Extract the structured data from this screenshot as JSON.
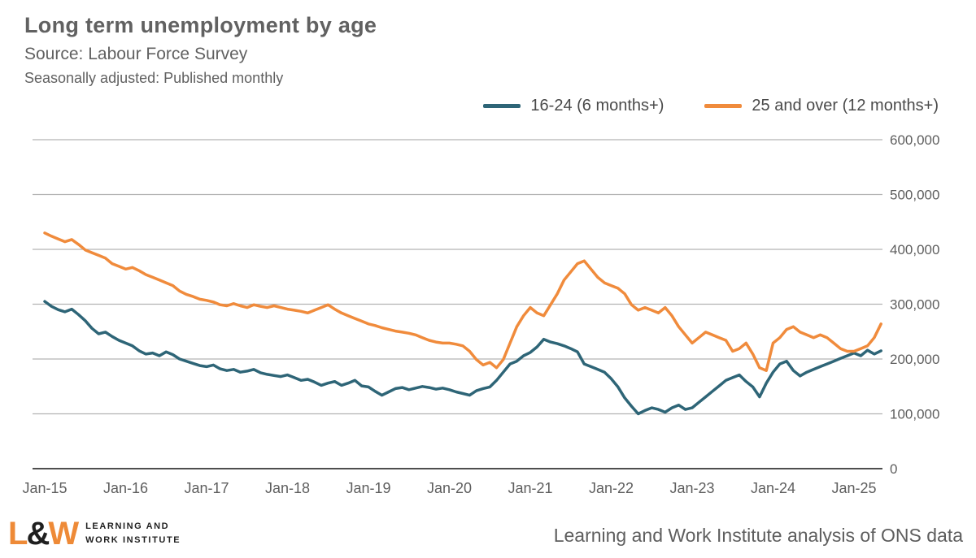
{
  "header": {
    "title": "Long term unemployment by age",
    "source": "Source: Labour Force Survey",
    "subtitle": "Seasonally adjusted: Published monthly"
  },
  "legend": [
    {
      "label": "16-24 (6 months+)",
      "color": "#2e6577"
    },
    {
      "label": "25 and over (12 months+)",
      "color": "#f08b3c"
    }
  ],
  "footer": {
    "logo_l": "L",
    "logo_amp": "&",
    "logo_w": "W",
    "logo_caption_line1": "LEARNING AND",
    "logo_caption_line2": "WORK INSTITUTE",
    "attribution": "Learning and Work Institute analysis of ONS data"
  },
  "chart_data": {
    "type": "line",
    "title": "Long term unemployment by age",
    "xlabel": "",
    "ylabel": "",
    "ylim": [
      0,
      600000
    ],
    "y_axis_side": "right",
    "grid": "horizontal",
    "legend_position": "top",
    "frequency": "monthly",
    "x_start": "Jan-2015",
    "x_end": "May-2025",
    "x_tick_labels": [
      "Jan-15",
      "Jan-16",
      "Jan-17",
      "Jan-18",
      "Jan-19",
      "Jan-20",
      "Jan-21",
      "Jan-22",
      "Jan-23",
      "Jan-24",
      "Jan-25"
    ],
    "y_ticks": [
      {
        "value": 600000,
        "label": "600,000"
      },
      {
        "value": 500000,
        "label": "500,000"
      },
      {
        "value": 400000,
        "label": "400,000"
      },
      {
        "value": 300000,
        "label": "300,000"
      },
      {
        "value": 200000,
        "label": "200,000"
      },
      {
        "value": 100000,
        "label": "100,000"
      },
      {
        "value": 0,
        "label": "0"
      }
    ],
    "series": [
      {
        "name": "16-24 (6 months+)",
        "color": "#2e6577",
        "values": [
          305000,
          296000,
          290000,
          286000,
          291000,
          281000,
          270000,
          256000,
          246000,
          249000,
          241000,
          234000,
          229000,
          224000,
          215000,
          209000,
          211000,
          206000,
          213000,
          208000,
          200000,
          196000,
          192000,
          188000,
          186000,
          189000,
          182000,
          179000,
          181000,
          176000,
          178000,
          181000,
          175000,
          172000,
          170000,
          168000,
          171000,
          166000,
          161000,
          163000,
          158000,
          152000,
          156000,
          159000,
          152000,
          156000,
          161000,
          151000,
          149000,
          141000,
          134000,
          140000,
          146000,
          148000,
          144000,
          147000,
          150000,
          148000,
          145000,
          147000,
          144000,
          140000,
          137000,
          134000,
          142000,
          146000,
          149000,
          161000,
          176000,
          191000,
          196000,
          206000,
          212000,
          222000,
          236000,
          231000,
          228000,
          224000,
          219000,
          213000,
          191000,
          186000,
          181000,
          176000,
          164000,
          149000,
          129000,
          114000,
          100000,
          106000,
          111000,
          108000,
          103000,
          111000,
          116000,
          108000,
          111000,
          121000,
          131000,
          141000,
          151000,
          161000,
          166000,
          171000,
          159000,
          149000,
          131000,
          156000,
          176000,
          191000,
          196000,
          179000,
          169000,
          176000,
          181000,
          186000,
          191000,
          196000,
          201000,
          206000,
          211000,
          206000,
          216000,
          209000,
          215000
        ]
      },
      {
        "name": "25 and over (12 months+)",
        "color": "#f08b3c",
        "values": [
          430000,
          424000,
          419000,
          414000,
          418000,
          409000,
          399000,
          394000,
          389000,
          384000,
          374000,
          369000,
          364000,
          367000,
          361000,
          354000,
          349000,
          344000,
          339000,
          334000,
          324000,
          318000,
          314000,
          309000,
          307000,
          304000,
          299000,
          297000,
          301000,
          297000,
          294000,
          299000,
          296000,
          294000,
          297000,
          294000,
          291000,
          289000,
          287000,
          284000,
          289000,
          294000,
          299000,
          291000,
          284000,
          279000,
          274000,
          269000,
          264000,
          261000,
          257000,
          254000,
          251000,
          249000,
          247000,
          244000,
          239000,
          234000,
          231000,
          229000,
          229000,
          227000,
          224000,
          214000,
          199000,
          189000,
          194000,
          184000,
          199000,
          229000,
          259000,
          279000,
          294000,
          284000,
          279000,
          299000,
          319000,
          344000,
          359000,
          374000,
          379000,
          364000,
          349000,
          339000,
          334000,
          329000,
          319000,
          299000,
          289000,
          294000,
          289000,
          284000,
          294000,
          279000,
          259000,
          244000,
          229000,
          239000,
          249000,
          244000,
          239000,
          234000,
          214000,
          219000,
          229000,
          209000,
          184000,
          179000,
          229000,
          239000,
          254000,
          259000,
          249000,
          244000,
          239000,
          244000,
          239000,
          229000,
          219000,
          214000,
          214000,
          219000,
          224000,
          239000,
          264000
        ]
      }
    ]
  }
}
